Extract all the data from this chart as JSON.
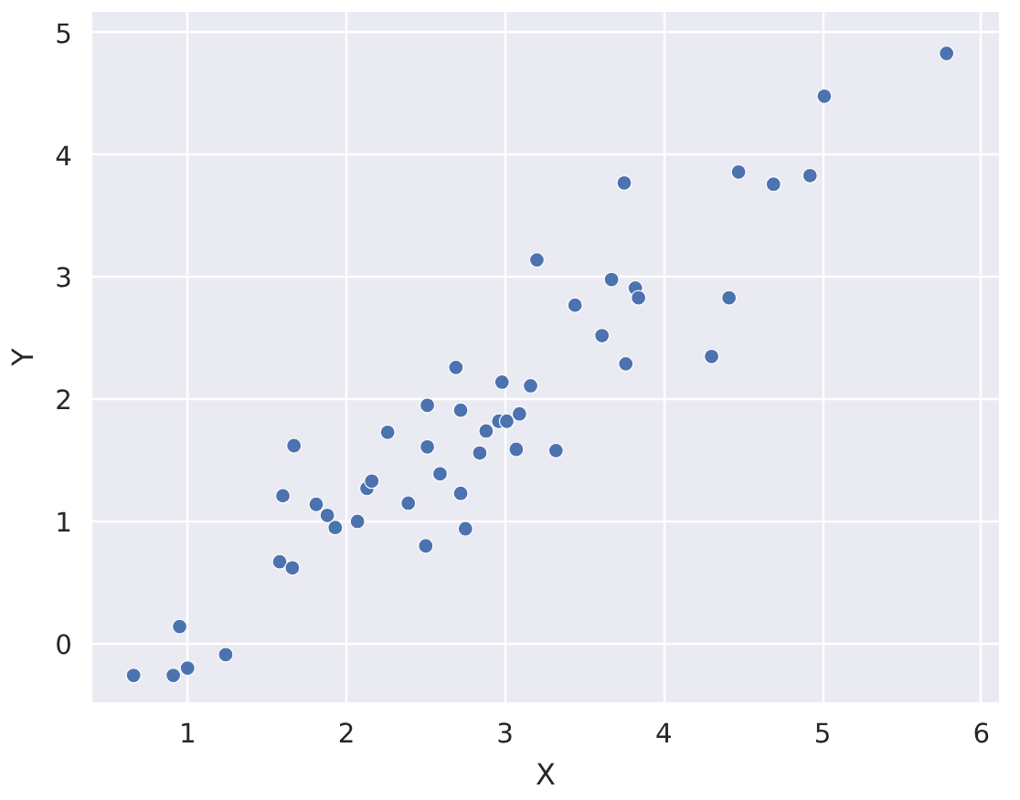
{
  "chart_data": {
    "type": "scatter",
    "xlabel": "X",
    "ylabel": "Y",
    "xlim": [
      0.4,
      6.11
    ],
    "ylim": [
      -0.48,
      5.17
    ],
    "xticks": [
      1,
      2,
      3,
      4,
      5,
      6
    ],
    "yticks": [
      0,
      1,
      2,
      3,
      4,
      5
    ],
    "grid": true,
    "marker": "circle",
    "series": [
      {
        "color": "#4c72b0",
        "x": [
          0.66,
          0.91,
          1.0,
          0.95,
          1.24,
          1.58,
          1.66,
          1.6,
          1.67,
          1.81,
          1.88,
          1.93,
          2.07,
          2.13,
          2.16,
          2.26,
          2.39,
          2.5,
          2.72,
          2.75,
          2.69,
          2.72,
          2.98,
          3.16,
          2.88,
          2.96,
          3.01,
          3.09,
          2.51,
          2.84,
          3.07,
          3.32,
          2.59,
          2.51,
          3.2,
          3.44,
          3.61,
          3.67,
          3.76,
          3.75,
          3.82,
          3.84,
          4.3,
          4.41,
          4.47,
          4.69,
          4.92,
          5.01,
          5.78
        ],
        "values": [
          -0.26,
          -0.26,
          -0.2,
          0.14,
          -0.09,
          0.67,
          0.62,
          1.21,
          1.62,
          1.14,
          1.05,
          0.95,
          1.0,
          1.27,
          1.33,
          1.73,
          1.15,
          0.8,
          1.23,
          0.94,
          2.26,
          1.91,
          2.14,
          2.11,
          1.74,
          1.82,
          1.82,
          1.88,
          1.61,
          1.56,
          1.59,
          1.58,
          1.39,
          1.95,
          3.14,
          2.77,
          2.52,
          2.98,
          2.29,
          3.77,
          2.91,
          2.83,
          2.35,
          2.83,
          3.86,
          3.76,
          3.83,
          4.48,
          4.83
        ]
      }
    ]
  }
}
